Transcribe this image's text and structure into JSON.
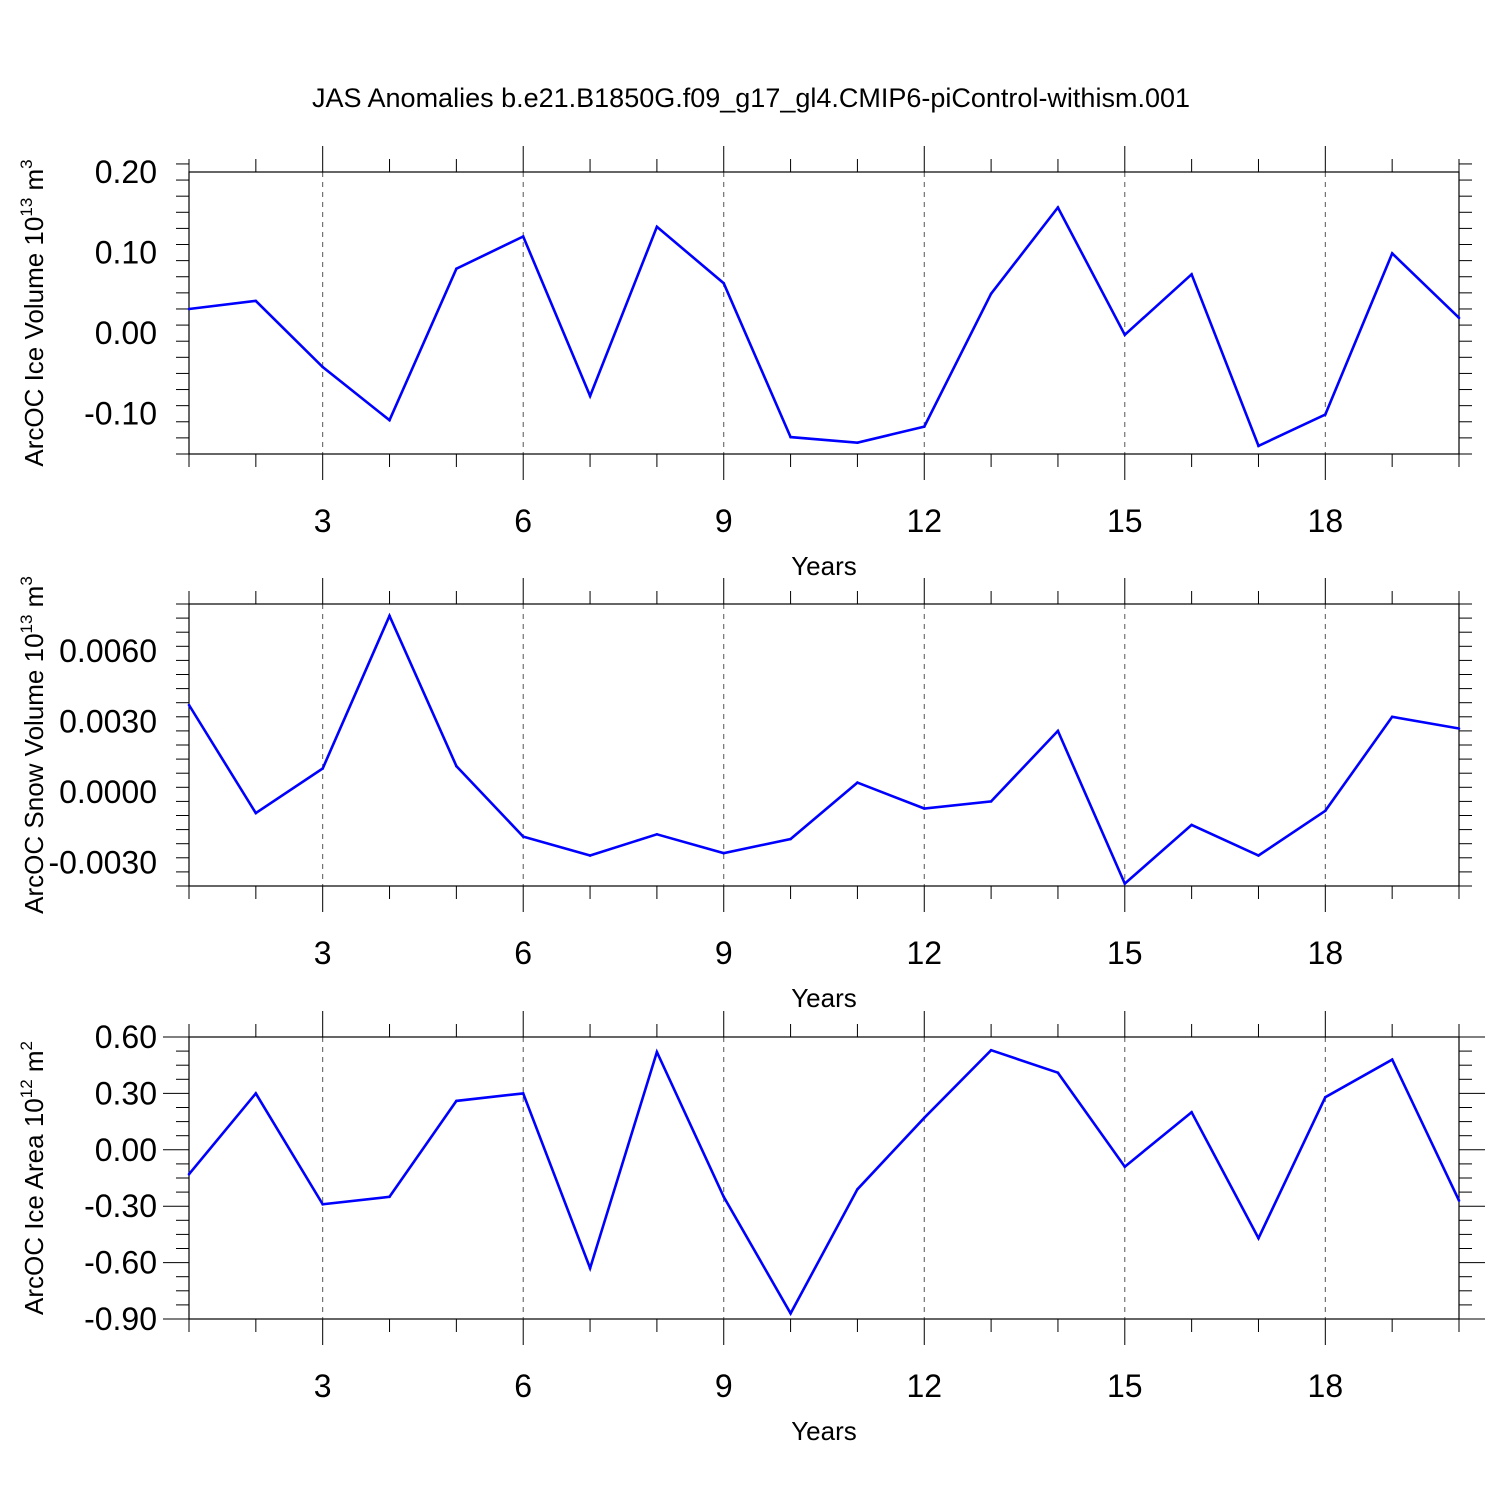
{
  "title": "JAS Anomalies b.e21.B1850G.f09_g17_gl4.CMIP6-piControl-withism.001",
  "colors": {
    "series": "#0000ff",
    "axis": "#000000",
    "grid": "#555555"
  },
  "chart_data": [
    {
      "type": "line",
      "xlabel": "Years",
      "ylabel": {
        "text": "ArcOC Ice Volume 10",
        "sup": "13",
        "unit": " m",
        "unit_sup": "3"
      },
      "xlim": [
        1,
        20
      ],
      "ylim": [
        -0.15,
        0.2
      ],
      "x_ticks": [
        3,
        6,
        9,
        12,
        15,
        18
      ],
      "x_tick_labels": [
        "3",
        "6",
        "9",
        "12",
        "15",
        "18"
      ],
      "y_ticks": [
        -0.1,
        0.0,
        0.1,
        0.2
      ],
      "y_tick_labels": [
        "-0.10",
        "0.00",
        "0.10",
        "0.20"
      ],
      "y_minor": 0.02,
      "grid": "vertical dashed at major x ticks",
      "x": [
        1,
        2,
        3,
        4,
        5,
        6,
        7,
        8,
        9,
        10,
        11,
        12,
        13,
        14,
        15,
        16,
        17,
        18,
        19,
        20
      ],
      "values": [
        0.03,
        0.04,
        -0.042,
        -0.108,
        0.08,
        0.12,
        -0.078,
        0.132,
        0.062,
        -0.129,
        -0.136,
        -0.116,
        0.049,
        0.156,
        -0.002,
        0.073,
        -0.14,
        -0.101,
        0.099,
        0.019
      ]
    },
    {
      "type": "line",
      "xlabel": "Years",
      "ylabel": {
        "text": "ArcOC Snow Volume 10",
        "sup": "13",
        "unit": " m",
        "unit_sup": "3"
      },
      "xlim": [
        1,
        20
      ],
      "ylim": [
        -0.004,
        0.008
      ],
      "x_ticks": [
        3,
        6,
        9,
        12,
        15,
        18
      ],
      "x_tick_labels": [
        "3",
        "6",
        "9",
        "12",
        "15",
        "18"
      ],
      "y_ticks": [
        -0.003,
        0.0,
        0.003,
        0.006
      ],
      "y_tick_labels": [
        "-0.0030",
        "0.0000",
        "0.0030",
        "0.0060"
      ],
      "y_minor": 0.0006,
      "grid": "vertical dashed at major x ticks",
      "x": [
        1,
        2,
        3,
        4,
        5,
        6,
        7,
        8,
        9,
        10,
        11,
        12,
        13,
        14,
        15,
        16,
        17,
        18,
        19,
        20
      ],
      "values": [
        0.0037,
        -0.0009,
        0.001,
        0.0075,
        0.0011,
        -0.0019,
        -0.0027,
        -0.0018,
        -0.0026,
        -0.002,
        0.0004,
        -0.0007,
        -0.0004,
        0.0026,
        -0.0039,
        -0.0014,
        -0.0027,
        -0.0008,
        0.0032,
        0.0027
      ]
    },
    {
      "type": "line",
      "xlabel": "Years",
      "ylabel": {
        "text": "ArcOC Ice Area 10",
        "sup": "12",
        "unit": " m",
        "unit_sup": "2"
      },
      "xlim": [
        1,
        20
      ],
      "ylim": [
        -0.9,
        0.6
      ],
      "x_ticks": [
        3,
        6,
        9,
        12,
        15,
        18
      ],
      "x_tick_labels": [
        "3",
        "6",
        "9",
        "12",
        "15",
        "18"
      ],
      "y_ticks": [
        -0.9,
        -0.6,
        -0.3,
        0.0,
        0.3,
        0.6
      ],
      "y_tick_labels": [
        "-0.90",
        "-0.60",
        "-0.30",
        "0.00",
        "0.30",
        "0.60"
      ],
      "y_minor": 0.075,
      "grid": "vertical dashed at major x ticks",
      "x": [
        1,
        2,
        3,
        4,
        5,
        6,
        7,
        8,
        9,
        10,
        11,
        12,
        13,
        14,
        15,
        16,
        17,
        18,
        19,
        20
      ],
      "values": [
        -0.13,
        0.3,
        -0.29,
        -0.25,
        0.26,
        0.3,
        -0.63,
        0.52,
        -0.25,
        -0.87,
        -0.21,
        0.17,
        0.53,
        0.41,
        -0.09,
        0.2,
        -0.47,
        0.28,
        0.48,
        -0.27
      ]
    }
  ]
}
